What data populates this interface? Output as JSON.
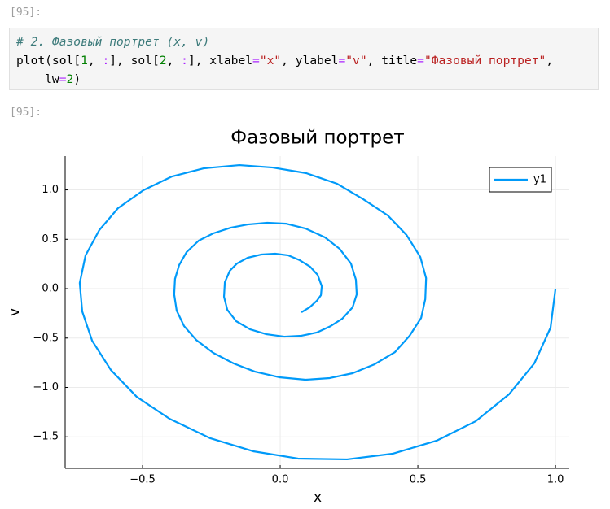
{
  "prompts": [
    "[95]:",
    "[95]:"
  ],
  "code": {
    "lines": [
      [
        {
          "text": "# 2. Фазовый портрет (x, v)",
          "color": "#3d7b7b",
          "style": "italic"
        }
      ],
      [
        {
          "text": "plot(sol[",
          "color": "#000000"
        },
        {
          "text": "1",
          "color": "#008000"
        },
        {
          "text": ", ",
          "color": "#000000"
        },
        {
          "text": ":",
          "color": "#aa22ff"
        },
        {
          "text": "], sol[",
          "color": "#000000"
        },
        {
          "text": "2",
          "color": "#008000"
        },
        {
          "text": ", ",
          "color": "#000000"
        },
        {
          "text": ":",
          "color": "#aa22ff"
        },
        {
          "text": "], xlabel",
          "color": "#000000"
        },
        {
          "text": "=",
          "color": "#aa22ff"
        },
        {
          "text": "\"x\"",
          "color": "#ba2121"
        },
        {
          "text": ", ylabel",
          "color": "#000000"
        },
        {
          "text": "=",
          "color": "#aa22ff"
        },
        {
          "text": "\"v\"",
          "color": "#ba2121"
        },
        {
          "text": ", title",
          "color": "#000000"
        },
        {
          "text": "=",
          "color": "#aa22ff"
        },
        {
          "text": "\"Фазовый портрет\"",
          "color": "#ba2121"
        },
        {
          "text": ",",
          "color": "#000000"
        }
      ],
      [
        {
          "text": "    lw",
          "color": "#000000"
        },
        {
          "text": "=",
          "color": "#aa22ff"
        },
        {
          "text": "2",
          "color": "#008000"
        },
        {
          "text": ")",
          "color": "#000000"
        }
      ]
    ]
  },
  "chart_data": {
    "type": "line",
    "title": "Фазовый портрет",
    "xlabel": "x",
    "ylabel": "v",
    "xlim": [
      -0.781,
      1.05
    ],
    "ylim": [
      -1.819,
      1.342
    ],
    "xticks": [
      {
        "value": -0.5,
        "label": "−0.5"
      },
      {
        "value": 0,
        "label": "0.0"
      },
      0.5,
      {
        "value": 1,
        "label": "1.0"
      }
    ],
    "yticks": [
      {
        "value": -1.5,
        "label": "−1.5"
      },
      {
        "value": -1,
        "label": "−1.0"
      },
      {
        "value": -0.5,
        "label": "−0.5"
      },
      {
        "value": 0,
        "label": "0.0"
      },
      0.5,
      {
        "value": 1,
        "label": "1.0"
      }
    ],
    "grid": true,
    "legend": "top-right",
    "series": [
      {
        "name": "y1",
        "color": "#009af9",
        "x": [
          1.0,
          0.982,
          0.923,
          0.831,
          0.71,
          0.568,
          0.408,
          0.243,
          0.065,
          -0.098,
          -0.254,
          -0.402,
          -0.521,
          -0.615,
          -0.683,
          -0.719,
          -0.728,
          -0.707,
          -0.657,
          -0.589,
          -0.497,
          -0.393,
          -0.278,
          -0.148,
          -0.027,
          0.095,
          0.207,
          0.302,
          0.391,
          0.459,
          0.509,
          0.53,
          0.527,
          0.512,
          0.47,
          0.417,
          0.343,
          0.263,
          0.18,
          0.092,
          -0.003,
          -0.092,
          -0.169,
          -0.243,
          -0.305,
          -0.349,
          -0.376,
          -0.385,
          -0.382,
          -0.367,
          -0.34,
          -0.296,
          -0.243,
          -0.18,
          -0.118,
          -0.047,
          0.021,
          0.092,
          0.163,
          0.216,
          0.257,
          0.275,
          0.278,
          0.263,
          0.225,
          0.183,
          0.133,
          0.077,
          0.015,
          -0.05,
          -0.109,
          -0.16,
          -0.192,
          -0.204,
          -0.201,
          -0.183,
          -0.157,
          -0.118,
          -0.068,
          -0.018,
          0.03,
          0.071,
          0.109,
          0.136,
          0.151,
          0.148,
          0.133,
          0.107,
          0.077
        ],
        "values": [
          0.0,
          -0.395,
          -0.757,
          -1.07,
          -1.342,
          -1.539,
          -1.671,
          -1.728,
          -1.72,
          -1.646,
          -1.514,
          -1.317,
          -1.095,
          -0.823,
          -0.527,
          -0.23,
          0.058,
          0.337,
          0.593,
          0.815,
          0.996,
          1.136,
          1.218,
          1.251,
          1.226,
          1.169,
          1.062,
          0.905,
          0.741,
          0.543,
          0.321,
          0.107,
          -0.107,
          -0.296,
          -0.477,
          -0.642,
          -0.765,
          -0.856,
          -0.905,
          -0.922,
          -0.897,
          -0.84,
          -0.757,
          -0.65,
          -0.519,
          -0.379,
          -0.222,
          -0.058,
          0.099,
          0.239,
          0.37,
          0.486,
          0.56,
          0.617,
          0.65,
          0.667,
          0.658,
          0.609,
          0.519,
          0.403,
          0.255,
          0.091,
          -0.058,
          -0.189,
          -0.305,
          -0.379,
          -0.444,
          -0.477,
          -0.486,
          -0.461,
          -0.412,
          -0.329,
          -0.214,
          -0.082,
          0.066,
          0.181,
          0.255,
          0.313,
          0.346,
          0.354,
          0.337,
          0.288,
          0.222,
          0.14,
          0.025,
          -0.066,
          -0.123,
          -0.189,
          -0.239
        ]
      }
    ]
  }
}
